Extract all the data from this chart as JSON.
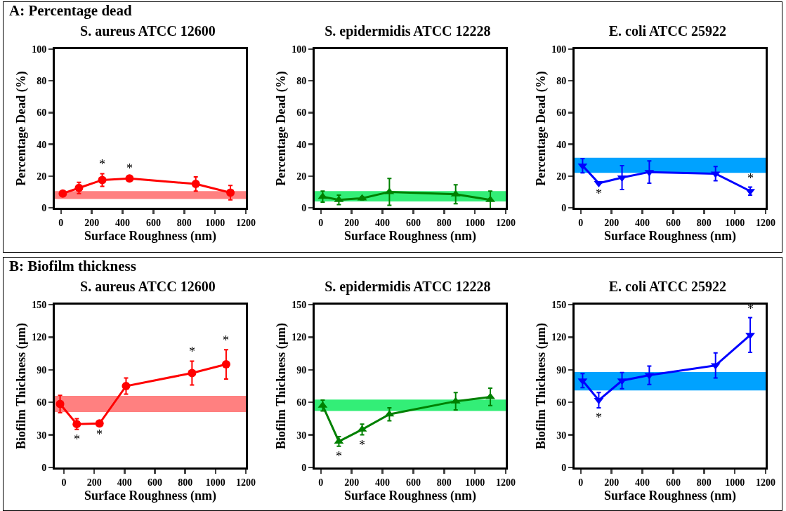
{
  "chart_data": [
    {
      "type": "line",
      "title": "S. aureus ATCC 12600",
      "xlabel": "Surface Roughness (nm)",
      "ylabel": "Percentage Dead (%)",
      "x": [
        12,
        117,
        268,
        445,
        875,
        1100
      ],
      "series": [
        {
          "color": "#ff0000",
          "values": [
            9,
            12.5,
            17.5,
            18.5,
            15,
            9.5
          ],
          "errors": [
            0.5,
            3.5,
            4,
            0.5,
            4.5,
            4.5
          ]
        }
      ],
      "bands": [
        {
          "axis": "y",
          "from": 5.5,
          "to": 10.5,
          "color": "#ff8080"
        }
      ],
      "annotations": [
        "A: Percentage dead",
        {
          "text": "*",
          "x": 268,
          "y": 21.5
        },
        {
          "text": "*",
          "x": 445,
          "y": 19
        }
      ],
      "xlim": [
        -40,
        1200
      ],
      "xticks": [
        0,
        200,
        400,
        600,
        800,
        1000,
        1200
      ],
      "ylim": [
        0,
        100
      ],
      "yticks": [
        0,
        20,
        40,
        60,
        80,
        100
      ],
      "marker": "circle",
      "grid": false
    },
    {
      "type": "line",
      "title": "S. epidermidis ATCC 12228",
      "xlabel": "Surface Roughness (nm)",
      "ylabel": "Percentage Dead (%)",
      "x": [
        12,
        117,
        268,
        445,
        875,
        1100
      ],
      "series": [
        {
          "color": "#008000",
          "values": [
            7,
            5,
            6,
            10,
            8.5,
            5
          ],
          "errors": [
            3.5,
            3,
            1,
            8.5,
            6,
            5.5
          ]
        }
      ],
      "bands": [
        {
          "axis": "y",
          "from": 4,
          "to": 10.5,
          "color": "#33ee77"
        }
      ],
      "xlim": [
        -40,
        1200
      ],
      "xticks": [
        0,
        200,
        400,
        600,
        800,
        1000,
        1200
      ],
      "ylim": [
        0,
        100
      ],
      "yticks": [
        0,
        20,
        40,
        60,
        80,
        100
      ],
      "marker": "triangle",
      "grid": false
    },
    {
      "type": "line",
      "title": "E. coli ATCC 25922",
      "xlabel": "Surface Roughness (nm)",
      "ylabel": "Percentage Dead (%)",
      "x": [
        12,
        117,
        268,
        445,
        875,
        1100
      ],
      "series": [
        {
          "color": "#0000ff",
          "values": [
            26.5,
            15.5,
            19,
            22.5,
            21.5,
            10.5
          ],
          "errors": [
            4.5,
            0.5,
            7.5,
            7,
            4.5,
            2.5
          ]
        }
      ],
      "bands": [
        {
          "axis": "y",
          "from": 22,
          "to": 31.5,
          "color": "#00a2ff"
        }
      ],
      "annotations": [
        {
          "text": "*",
          "x": 117,
          "y": 15
        },
        {
          "text": "*",
          "x": 1100,
          "y": 13
        }
      ],
      "xlim": [
        -40,
        1200
      ],
      "xticks": [
        0,
        200,
        400,
        600,
        800,
        1000,
        1200
      ],
      "ylim": [
        0,
        100
      ],
      "yticks": [
        0,
        20,
        40,
        60,
        80,
        100
      ],
      "marker": "triangle-down",
      "grid": false
    },
    {
      "type": "line",
      "title": "S. aureus ATCC 12600",
      "xlabel": "Surface Roughness (nm)",
      "ylabel": "Biofilm Thickness (µm)",
      "x": [
        -25,
        85,
        235,
        410,
        845,
        1070
      ],
      "series": [
        {
          "color": "#ff0000",
          "values": [
            58.5,
            40,
            40.5,
            75,
            87,
            95
          ],
          "errors": [
            8,
            5,
            1,
            7.5,
            11,
            13.5
          ]
        }
      ],
      "bands": [
        {
          "axis": "y",
          "from": 51,
          "to": 66,
          "color": "#ff8080"
        }
      ],
      "annotations": [
        "B: Biofilm thickness",
        {
          "text": "*",
          "x": 85,
          "y": 35
        },
        {
          "text": "*",
          "x": 235,
          "y": 39.5
        },
        {
          "text": "*",
          "x": 845,
          "y": 98
        },
        {
          "text": "*",
          "x": 1070,
          "y": 108.5
        }
      ],
      "xlim": [
        -60,
        1200
      ],
      "xticks": [
        0,
        200,
        400,
        600,
        800,
        1000,
        1200
      ],
      "ylim": [
        0,
        150
      ],
      "yticks": [
        0,
        30,
        60,
        90,
        120,
        150
      ],
      "marker": "circle",
      "grid": false
    },
    {
      "type": "line",
      "title": "S. epidermidis ATCC 12228",
      "xlabel": "Surface Roughness (nm)",
      "ylabel": "Biofilm Thickness (µm)",
      "x": [
        12,
        117,
        268,
        445,
        875,
        1100
      ],
      "series": [
        {
          "color": "#008000",
          "values": [
            57,
            24,
            35,
            49,
            61,
            65
          ],
          "errors": [
            5,
            4.5,
            5,
            6,
            8,
            8
          ]
        }
      ],
      "bands": [
        {
          "axis": "y",
          "from": 52,
          "to": 62.5,
          "color": "#33ee77"
        }
      ],
      "annotations": [
        {
          "text": "*",
          "x": 117,
          "y": 19.5
        },
        {
          "text": "*",
          "x": 268,
          "y": 30
        }
      ],
      "xlim": [
        -40,
        1200
      ],
      "xticks": [
        0,
        200,
        400,
        600,
        800,
        1000,
        1200
      ],
      "ylim": [
        0,
        150
      ],
      "yticks": [
        0,
        30,
        60,
        90,
        120,
        150
      ],
      "marker": "triangle",
      "grid": false
    },
    {
      "type": "line",
      "title": "E. coli ATCC 25922",
      "xlabel": "Surface Roughness (nm)",
      "ylabel": "Biofilm Thickness (µm)",
      "x": [
        12,
        117,
        268,
        445,
        875,
        1100
      ],
      "series": [
        {
          "color": "#0000ff",
          "values": [
            80,
            62,
            80,
            85,
            94,
            122
          ],
          "errors": [
            6.5,
            7,
            7.5,
            8.5,
            11.5,
            16
          ]
        }
      ],
      "bands": [
        {
          "axis": "y",
          "from": 71,
          "to": 88,
          "color": "#00a2ff"
        }
      ],
      "annotations": [
        {
          "text": "*",
          "x": 117,
          "y": 55
        },
        {
          "text": "*",
          "x": 1100,
          "y": 138
        }
      ],
      "xlim": [
        -40,
        1200
      ],
      "xticks": [
        0,
        200,
        400,
        600,
        800,
        1000,
        1200
      ],
      "ylim": [
        0,
        150
      ],
      "yticks": [
        0,
        30,
        60,
        90,
        120,
        150
      ],
      "marker": "triangle-down",
      "grid": false
    }
  ]
}
